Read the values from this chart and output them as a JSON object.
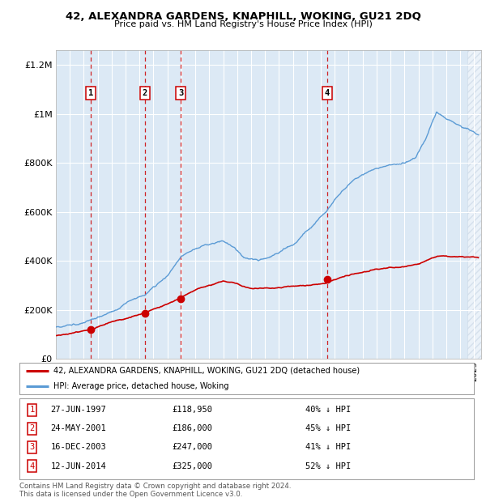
{
  "title": "42, ALEXANDRA GARDENS, KNAPHILL, WOKING, GU21 2DQ",
  "subtitle": "Price paid vs. HM Land Registry's House Price Index (HPI)",
  "plot_bg_color": "#dce9f5",
  "yticks": [
    0,
    200000,
    400000,
    600000,
    800000,
    1000000,
    1200000
  ],
  "ytick_labels": [
    "£0",
    "£200K",
    "£400K",
    "£600K",
    "£800K",
    "£1M",
    "£1.2M"
  ],
  "sales": [
    {
      "num": 1,
      "date": "27-JUN-1997",
      "year": 1997.49,
      "price": 118950,
      "pct": "40%",
      "dir": "↓"
    },
    {
      "num": 2,
      "date": "24-MAY-2001",
      "year": 2001.38,
      "price": 186000,
      "pct": "45%",
      "dir": "↓"
    },
    {
      "num": 3,
      "date": "16-DEC-2003",
      "year": 2003.95,
      "price": 247000,
      "pct": "41%",
      "dir": "↓"
    },
    {
      "num": 4,
      "date": "12-JUN-2014",
      "year": 2014.44,
      "price": 325000,
      "pct": "52%",
      "dir": "↓"
    }
  ],
  "hpi_line_color": "#5b9bd5",
  "sale_line_color": "#cc0000",
  "vline_color": "#cc0000",
  "legend_label_sale": "42, ALEXANDRA GARDENS, KNAPHILL, WOKING, GU21 2DQ (detached house)",
  "legend_label_hpi": "HPI: Average price, detached house, Woking",
  "footer1": "Contains HM Land Registry data © Crown copyright and database right 2024.",
  "footer2": "This data is licensed under the Open Government Licence v3.0."
}
